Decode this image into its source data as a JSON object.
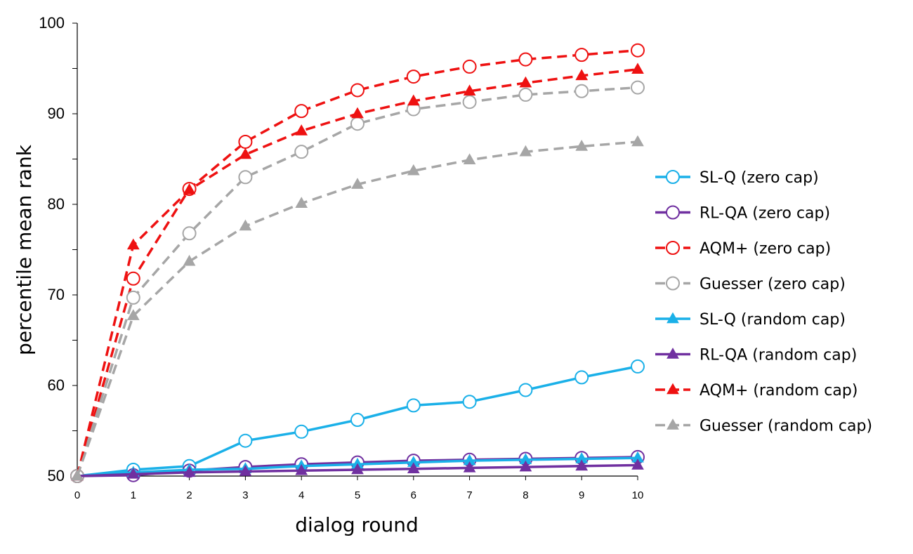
{
  "chart_data": {
    "type": "line",
    "title": "",
    "xlabel": "dialog round",
    "ylabel": "percentile mean rank",
    "x": [
      0,
      1,
      2,
      3,
      4,
      5,
      6,
      7,
      8,
      9,
      10
    ],
    "xlim": [
      0,
      10
    ],
    "ylim": [
      50,
      100
    ],
    "yticks": [
      50,
      60,
      70,
      80,
      90,
      100
    ],
    "grid": false,
    "legend_position": "right",
    "series": [
      {
        "name": "SL-Q (zero cap)",
        "color": "#1ab0e8",
        "dashed": false,
        "marker": "circle",
        "values": [
          50,
          50.7,
          51.1,
          53.9,
          54.9,
          56.2,
          57.8,
          58.2,
          59.5,
          60.9,
          62.1
        ]
      },
      {
        "name": "RL-QA (zero cap)",
        "color": "#7030a0",
        "dashed": false,
        "marker": "circle",
        "values": [
          50,
          50.1,
          50.6,
          51.0,
          51.3,
          51.5,
          51.7,
          51.8,
          51.9,
          52.0,
          52.1
        ]
      },
      {
        "name": "AQM+ (zero cap)",
        "color": "#ee1111",
        "dashed": true,
        "marker": "circle",
        "values": [
          50,
          71.8,
          81.7,
          86.9,
          90.3,
          92.6,
          94.1,
          95.2,
          96.0,
          96.5,
          97.0
        ]
      },
      {
        "name": "Guesser (zero cap)",
        "color": "#a6a6a6",
        "dashed": true,
        "marker": "circle",
        "values": [
          50,
          69.7,
          76.8,
          83.0,
          85.8,
          88.9,
          90.5,
          91.3,
          92.1,
          92.5,
          92.9
        ]
      },
      {
        "name": "SL-Q (random cap)",
        "color": "#1ab0e8",
        "dashed": false,
        "marker": "triangle",
        "values": [
          50,
          50.4,
          50.7,
          50.8,
          51.1,
          51.3,
          51.5,
          51.7,
          51.8,
          51.9,
          52.0
        ]
      },
      {
        "name": "RL-QA (random cap)",
        "color": "#7030a0",
        "dashed": false,
        "marker": "triangle",
        "values": [
          50,
          50.2,
          50.4,
          50.5,
          50.6,
          50.7,
          50.8,
          50.9,
          51.0,
          51.1,
          51.2
        ]
      },
      {
        "name": "AQM+ (random cap)",
        "color": "#ee1111",
        "dashed": true,
        "marker": "triangle",
        "values": [
          50,
          75.5,
          81.6,
          85.5,
          88.1,
          90.0,
          91.4,
          92.5,
          93.4,
          94.2,
          94.9
        ]
      },
      {
        "name": "Guesser (random cap)",
        "color": "#a6a6a6",
        "dashed": true,
        "marker": "triangle",
        "values": [
          50,
          67.7,
          73.7,
          77.6,
          80.1,
          82.2,
          83.7,
          84.9,
          85.8,
          86.4,
          86.9
        ]
      }
    ]
  }
}
